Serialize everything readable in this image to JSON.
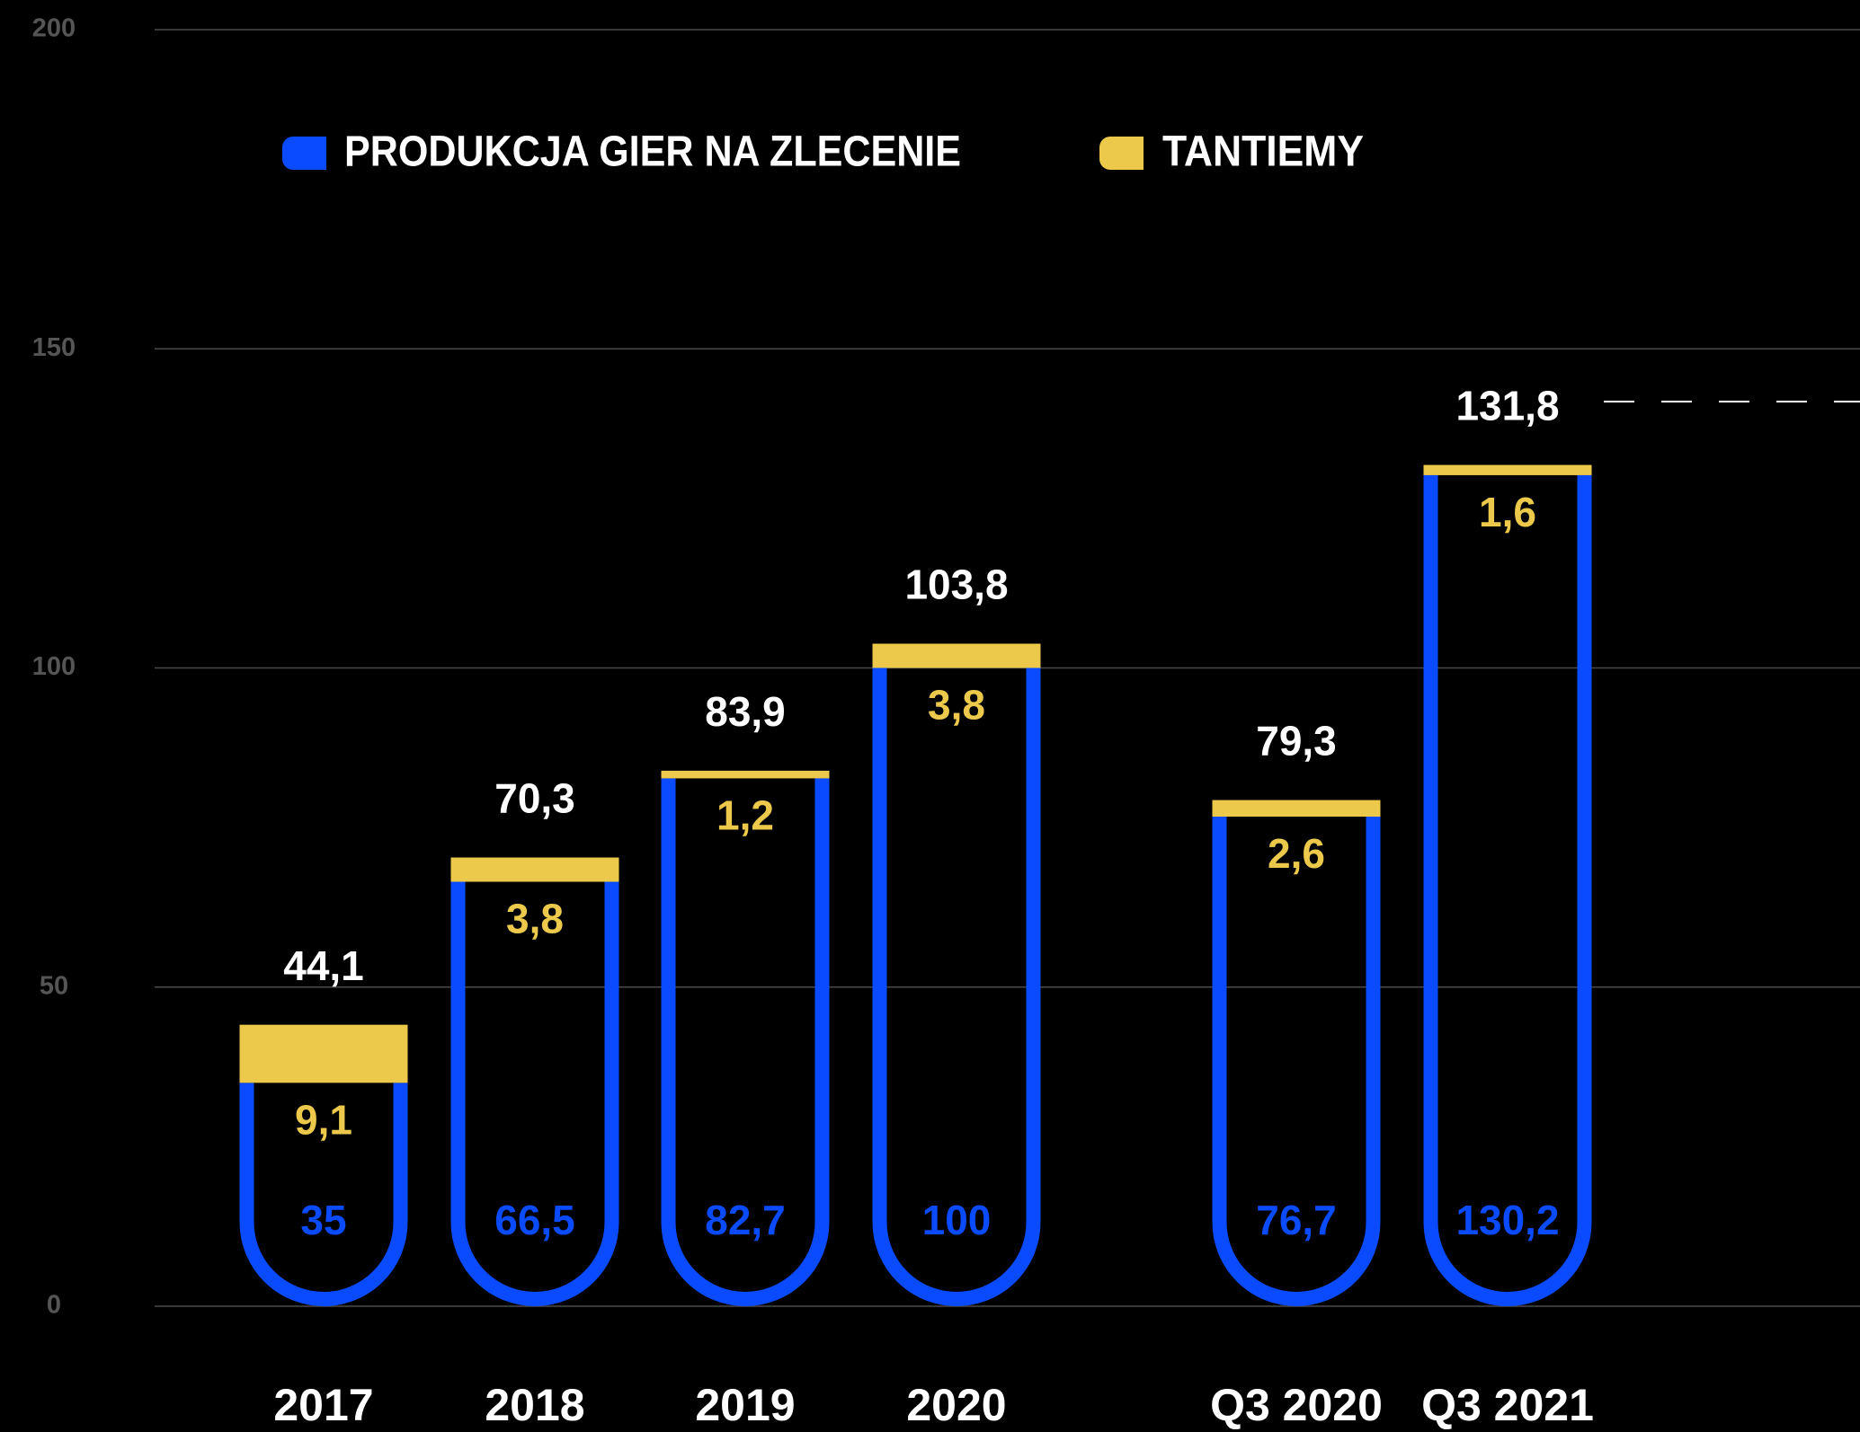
{
  "chart_data": {
    "type": "stacked-bar",
    "categories": [
      "2017",
      "2018",
      "2019",
      "2020",
      "Q3 2020",
      "Q3 2021"
    ],
    "series": [
      {
        "name": "PRODUKCJA GIER NA ZLECENIE",
        "color": "#0a4bff",
        "values": [
          35,
          66.5,
          82.7,
          100,
          76.7,
          130.2
        ],
        "value_labels": [
          "35",
          "66,5",
          "82,7",
          "100",
          "76,7",
          "130,2"
        ]
      },
      {
        "name": "TANTIEMY",
        "color": "#ecc94b",
        "values": [
          9.1,
          3.8,
          1.2,
          3.8,
          2.6,
          1.6
        ],
        "value_labels": [
          "9,1",
          "3,8",
          "1,2",
          "3,8",
          "2,6",
          "1,6"
        ]
      }
    ],
    "totals": {
      "values": [
        44.1,
        70.3,
        83.9,
        103.8,
        79.3,
        131.8
      ],
      "value_labels": [
        "44,1",
        "70,3",
        "83,9",
        "103,8",
        "79,3",
        "131,8"
      ]
    },
    "ylim": [
      0,
      200
    ],
    "yticks": [
      0,
      50,
      100,
      150,
      200
    ],
    "grid": true
  }
}
